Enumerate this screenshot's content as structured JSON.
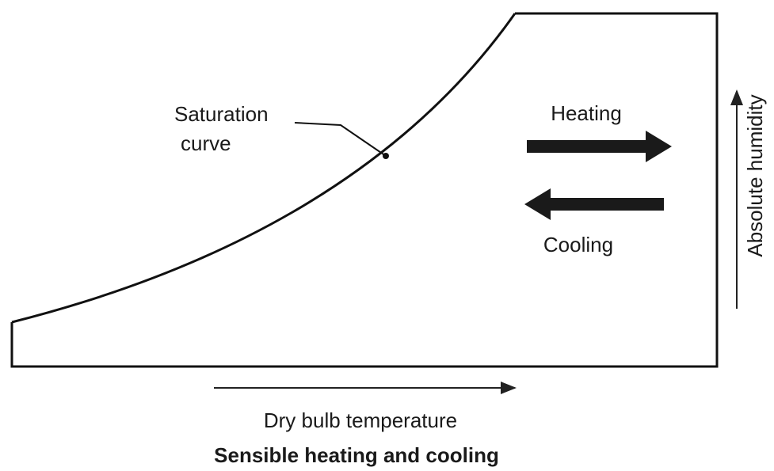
{
  "labels": {
    "saturation_curve": [
      "Saturation",
      "curve"
    ],
    "heating": "Heating",
    "cooling": "Cooling",
    "y_axis": "Absolute humidity",
    "x_axis": "Dry bulb temperature",
    "caption": "Sensible heating and cooling"
  }
}
